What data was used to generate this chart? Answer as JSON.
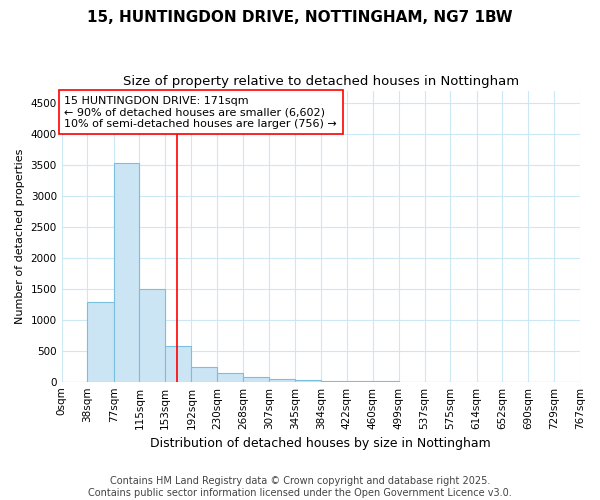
{
  "title_line1": "15, HUNTINGDON DRIVE, NOTTINGHAM, NG7 1BW",
  "title_line2": "Size of property relative to detached houses in Nottingham",
  "xlabel": "Distribution of detached houses by size in Nottingham",
  "ylabel": "Number of detached properties",
  "bar_edges": [
    0,
    38,
    77,
    115,
    153,
    192,
    230,
    268,
    307,
    345,
    384,
    422,
    460,
    499,
    537,
    575,
    614,
    652,
    690,
    729,
    767
  ],
  "bar_heights": [
    0,
    1280,
    3530,
    1490,
    580,
    240,
    140,
    70,
    45,
    20,
    10,
    5,
    3,
    2,
    1,
    1,
    0,
    0,
    0,
    0
  ],
  "bar_color": "#cce5f5",
  "bar_edgecolor": "#7bbfdf",
  "bar_linewidth": 0.8,
  "vline_x": 171,
  "vline_color": "red",
  "vline_linewidth": 1.2,
  "annotation_text": "15 HUNTINGDON DRIVE: 171sqm\n← 90% of detached houses are smaller (6,602)\n10% of semi-detached houses are larger (756) →",
  "annotation_fontsize": 8,
  "annotation_box_color": "white",
  "annotation_box_edgecolor": "red",
  "ylim": [
    0,
    4700
  ],
  "yticks": [
    0,
    500,
    1000,
    1500,
    2000,
    2500,
    3000,
    3500,
    4000,
    4500
  ],
  "xlim": [
    0,
    767
  ],
  "background_color": "#ffffff",
  "grid_color": "#cde8f5",
  "title_fontsize": 11,
  "subtitle_fontsize": 9.5,
  "axis_label_fontsize": 9,
  "ylabel_fontsize": 8,
  "tick_fontsize": 7.5,
  "footer_text": "Contains HM Land Registry data © Crown copyright and database right 2025.\nContains public sector information licensed under the Open Government Licence v3.0.",
  "footer_fontsize": 7
}
